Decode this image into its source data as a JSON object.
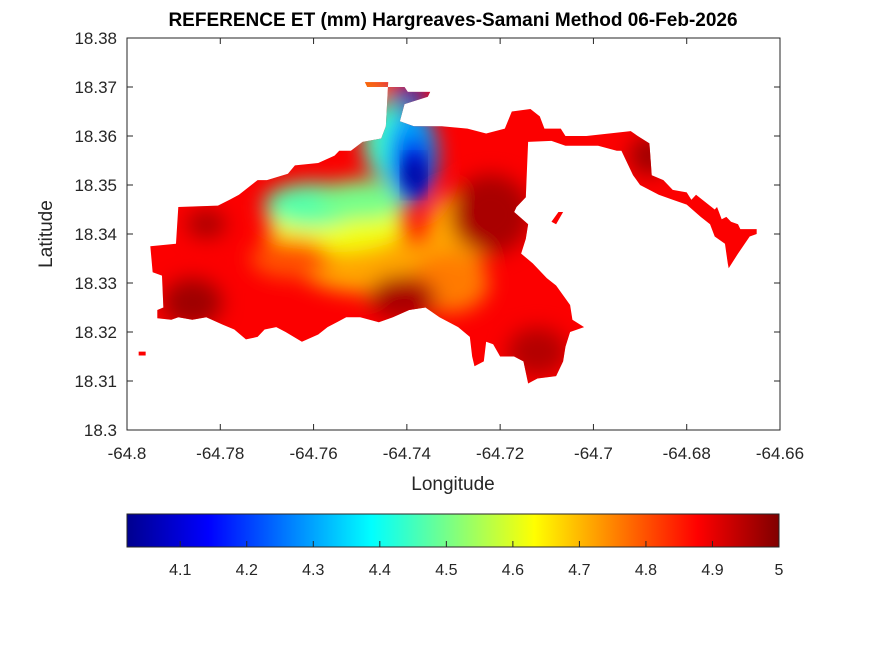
{
  "chart_data": {
    "type": "heatmap",
    "subtype": "filled-contour-map",
    "title": "REFERENCE ET (mm) Hargreaves-Samani Method  06-Feb-2026",
    "xlabel": "Longitude",
    "ylabel": "Latitude",
    "xlim": [
      -64.8,
      -64.66
    ],
    "ylim": [
      18.3,
      18.38
    ],
    "xticks": [
      -64.8,
      -64.78,
      -64.76,
      -64.74,
      -64.72,
      -64.7,
      -64.68,
      -64.66
    ],
    "xtick_labels": [
      "-64.8",
      "-64.78",
      "-64.76",
      "-64.74",
      "-64.72",
      "-64.7",
      "-64.68",
      "-64.66"
    ],
    "yticks": [
      18.3,
      18.31,
      18.32,
      18.33,
      18.34,
      18.35,
      18.36,
      18.37,
      18.38
    ],
    "ytick_labels": [
      "18.3",
      "18.31",
      "18.32",
      "18.33",
      "18.34",
      "18.35",
      "18.36",
      "18.37",
      "18.38"
    ],
    "grid": false,
    "colormap": "jet",
    "colorbar": {
      "location": "bottom",
      "clim": [
        4.02,
        5.0
      ],
      "ticks": [
        4.1,
        4.2,
        4.3,
        4.4,
        4.5,
        4.6,
        4.7,
        4.8,
        4.9,
        5.0
      ],
      "tick_labels": [
        "4.1",
        "4.2",
        "4.3",
        "4.4",
        "4.5",
        "4.6",
        "4.7",
        "4.8",
        "4.9",
        "5"
      ]
    },
    "features": [
      {
        "name": "blue-minimum",
        "lon": -64.7385,
        "lat": 18.352,
        "value": 4.03
      },
      {
        "name": "cyan-plateau",
        "lon": -64.758,
        "lat": 18.347,
        "value": 4.45
      },
      {
        "name": "yellow-band",
        "lon": -64.748,
        "lat": 18.336,
        "value": 4.65
      },
      {
        "name": "east-red",
        "lon": -64.722,
        "lat": 18.344,
        "value": 4.95
      },
      {
        "name": "southwest-red",
        "lon": -64.787,
        "lat": 18.325,
        "value": 4.97
      },
      {
        "name": "south-central-red",
        "lon": -64.742,
        "lat": 18.328,
        "value": 4.9
      },
      {
        "name": "southeast-orange",
        "lon": -64.715,
        "lat": 18.322,
        "value": 4.8
      },
      {
        "name": "far-east-islet",
        "lon": -64.671,
        "lat": 18.339,
        "value": 4.88
      },
      {
        "name": "north-strip-yellow",
        "lon": -64.747,
        "lat": 18.3705,
        "value": 4.62
      }
    ]
  }
}
